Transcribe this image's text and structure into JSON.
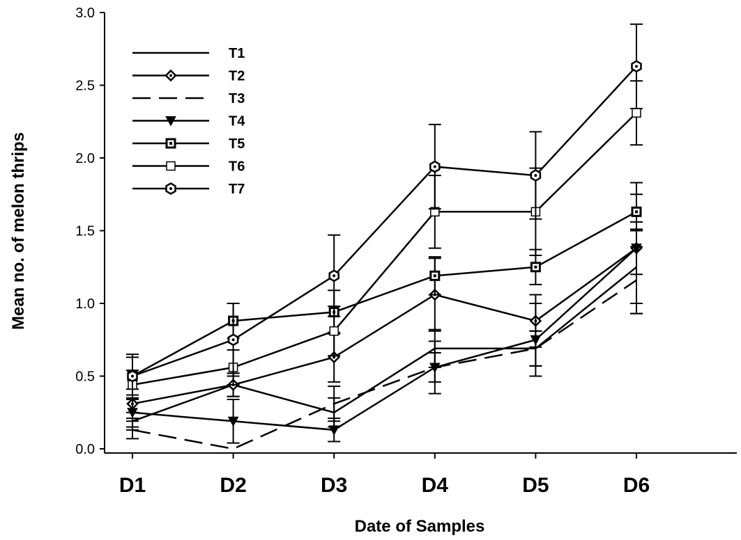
{
  "chart_data": {
    "type": "line",
    "title": "",
    "xlabel": "Date of Samples",
    "ylabel": "Mean no. of melon thrips",
    "categories": [
      "D1",
      "D2",
      "D3",
      "D4",
      "D5",
      "D6"
    ],
    "ylim": [
      0,
      3.0
    ],
    "yticks": [
      "0.0",
      "0.5",
      "1.0",
      "1.5",
      "2.0",
      "2.5",
      "3.0"
    ],
    "grid": false,
    "legend_position": "top-left",
    "series": [
      {
        "name": "T1",
        "marker": "none",
        "dash": "solid",
        "values": [
          0.19,
          0.44,
          0.25,
          0.69,
          0.69,
          1.25
        ],
        "errors": [
          0.06,
          0.08,
          0.1,
          0.13,
          0.12,
          0.25
        ]
      },
      {
        "name": "T2",
        "marker": "diamond",
        "dash": "solid",
        "values": [
          0.31,
          0.44,
          0.63,
          1.06,
          0.88,
          1.38
        ],
        "errors": [
          0.1,
          0.08,
          0.17,
          0.25,
          0.18,
          0.18
        ]
      },
      {
        "name": "T3",
        "marker": "none",
        "dash": "dashed",
        "values": [
          0.13,
          0.0,
          0.31,
          0.56,
          0.69,
          1.16
        ],
        "errors": [
          0.06,
          0.0,
          0.12,
          0.1,
          0.12,
          0.23
        ]
      },
      {
        "name": "T4",
        "marker": "triangle-down",
        "dash": "solid",
        "values": [
          0.25,
          0.19,
          0.13,
          0.56,
          0.75,
          1.38
        ],
        "errors": [
          0.1,
          0.15,
          0.08,
          0.18,
          0.25,
          0.45
        ]
      },
      {
        "name": "T5",
        "marker": "square-filled",
        "dash": "solid",
        "values": [
          0.5,
          0.88,
          0.94,
          1.19,
          1.25,
          1.63
        ],
        "errors": [
          0.13,
          0.12,
          0.15,
          0.13,
          0.12,
          0.12
        ]
      },
      {
        "name": "T6",
        "marker": "square-open",
        "dash": "solid",
        "values": [
          0.44,
          0.56,
          0.81,
          1.63,
          1.63,
          2.31
        ],
        "errors": [
          0.1,
          0.12,
          0.17,
          0.25,
          0.3,
          0.22
        ]
      },
      {
        "name": "T7",
        "marker": "hexagon",
        "dash": "solid",
        "values": [
          0.5,
          0.75,
          1.19,
          1.94,
          1.88,
          2.63
        ],
        "errors": [
          0.15,
          0.25,
          0.28,
          0.29,
          0.3,
          0.29
        ]
      }
    ]
  }
}
